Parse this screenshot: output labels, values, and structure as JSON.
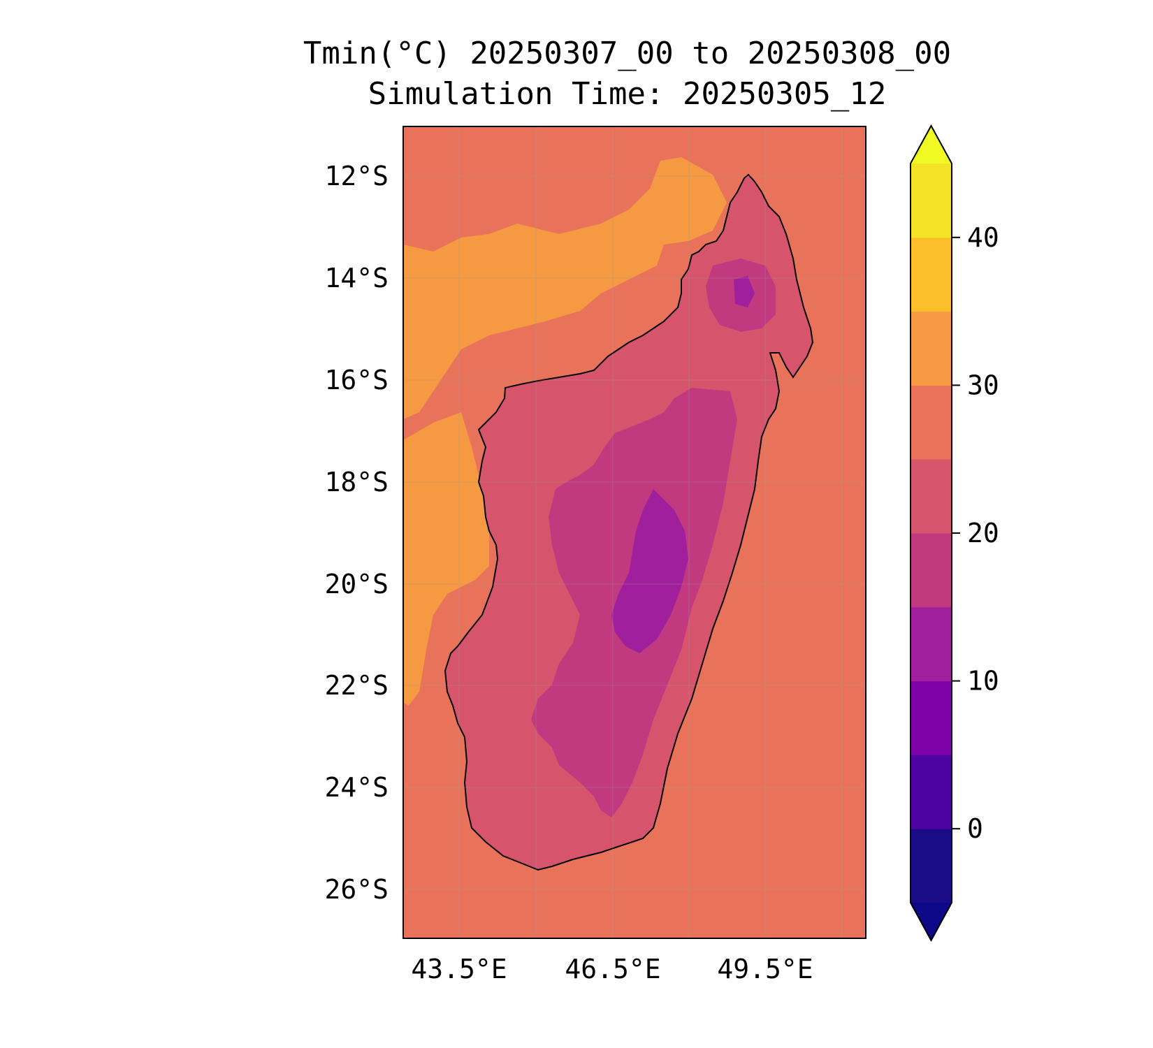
{
  "title": "Tmin(°C) 20250307_00 to 20250308_00",
  "subtitle": "Simulation Time: 20250305_12",
  "map": {
    "region": "Madagascar",
    "lon_range": [
      42.3,
      51.35
    ],
    "lat_range": [
      -27.1,
      -11.1
    ],
    "lat_ticks": [
      {
        "value": -12,
        "label": "12°S"
      },
      {
        "value": -14,
        "label": "14°S"
      },
      {
        "value": -16,
        "label": "16°S"
      },
      {
        "value": -18,
        "label": "18°S"
      },
      {
        "value": -20,
        "label": "20°S"
      },
      {
        "value": -22,
        "label": "22°S"
      },
      {
        "value": -24,
        "label": "24°S"
      },
      {
        "value": -26,
        "label": "26°S"
      }
    ],
    "lon_ticks": [
      {
        "value": 43.5,
        "label": "43.5°E"
      },
      {
        "value": 46.5,
        "label": "46.5°E"
      },
      {
        "value": 49.5,
        "label": "49.5°E"
      }
    ],
    "gridlines": true,
    "ocean_band_c": "25-30",
    "land_min_c_approx": 10
  },
  "colorbar": {
    "min": -5,
    "max": 45,
    "extend": "both",
    "levels": [
      -5,
      0,
      5,
      10,
      15,
      20,
      25,
      30,
      35,
      40,
      45
    ],
    "colors": [
      "#1a0c87",
      "#4e02a1",
      "#7d03a8",
      "#a01f9c",
      "#c1397f",
      "#d6556d",
      "#e9735a",
      "#f59a43",
      "#fcbe2a",
      "#f4e324"
    ],
    "under_color": "#0d0887",
    "over_color": "#f0f921",
    "ticks": [
      {
        "value": 0,
        "label": "0"
      },
      {
        "value": 10,
        "label": "10"
      },
      {
        "value": 20,
        "label": "20"
      },
      {
        "value": 30,
        "label": "30"
      },
      {
        "value": 40,
        "label": "40"
      }
    ]
  }
}
